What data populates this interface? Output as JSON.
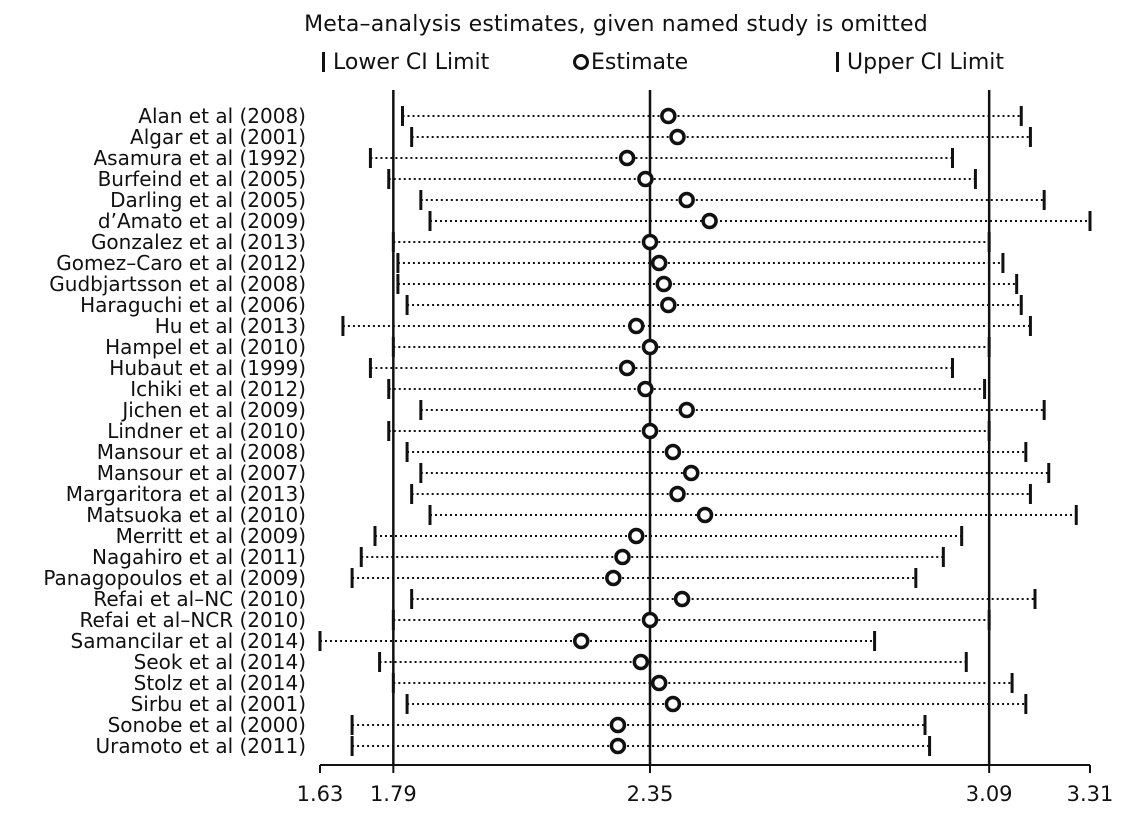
{
  "chart_data": {
    "type": "forest",
    "title": "Meta–analysis estimates, given named study is omitted",
    "legend": {
      "lower": "Lower CI Limit",
      "estimate": "Estimate",
      "upper": "Upper CI Limit",
      "placement": "top"
    },
    "xlim": [
      1.63,
      3.31
    ],
    "xticks": [
      {
        "value": 1.63,
        "label": "1.63"
      },
      {
        "value": 1.79,
        "label": "1.79"
      },
      {
        "value": 2.35,
        "label": "2.35"
      },
      {
        "value": 3.09,
        "label": "3.09"
      },
      {
        "value": 3.31,
        "label": "3.31"
      }
    ],
    "reference_lines": [
      1.79,
      2.35,
      3.09
    ],
    "studies": [
      {
        "name": "Alan et al  (2008)",
        "lower": 1.81,
        "estimate": 2.39,
        "upper": 3.16
      },
      {
        "name": "Algar et al  (2001)",
        "lower": 1.83,
        "estimate": 2.41,
        "upper": 3.18
      },
      {
        "name": "Asamura et al (1992)",
        "lower": 1.74,
        "estimate": 2.3,
        "upper": 3.01
      },
      {
        "name": "Burfeind et al (2005)",
        "lower": 1.78,
        "estimate": 2.34,
        "upper": 3.06
      },
      {
        "name": "Darling et al  (2005)",
        "lower": 1.85,
        "estimate": 2.43,
        "upper": 3.21
      },
      {
        "name": "d’Amato et al  (2009)",
        "lower": 1.87,
        "estimate": 2.48,
        "upper": 3.31
      },
      {
        "name": "Gonzalez et al (2013)",
        "lower": 1.79,
        "estimate": 2.35,
        "upper": 3.09
      },
      {
        "name": "Gomez–Caro et al (2012)",
        "lower": 1.8,
        "estimate": 2.37,
        "upper": 3.12
      },
      {
        "name": "Gudbjartsson et al (2008)",
        "lower": 1.8,
        "estimate": 2.38,
        "upper": 3.15
      },
      {
        "name": "Haraguchi et al  (2006)",
        "lower": 1.82,
        "estimate": 2.39,
        "upper": 3.16
      },
      {
        "name": "Hu et al  (2013)",
        "lower": 1.68,
        "estimate": 2.32,
        "upper": 3.18
      },
      {
        "name": "Hampel et al (2010)",
        "lower": 1.79,
        "estimate": 2.35,
        "upper": 3.09
      },
      {
        "name": "Hubaut et al  (1999)",
        "lower": 1.74,
        "estimate": 2.3,
        "upper": 3.01
      },
      {
        "name": "Ichiki et al  (2012)",
        "lower": 1.78,
        "estimate": 2.34,
        "upper": 3.08
      },
      {
        "name": "Jichen et al (2009)",
        "lower": 1.85,
        "estimate": 2.43,
        "upper": 3.21
      },
      {
        "name": "Lindner et al  (2010)",
        "lower": 1.78,
        "estimate": 2.35,
        "upper": 3.09
      },
      {
        "name": "Mansour et al (2008)",
        "lower": 1.82,
        "estimate": 2.4,
        "upper": 3.17
      },
      {
        "name": "Mansour et al  (2007)",
        "lower": 1.85,
        "estimate": 2.44,
        "upper": 3.22
      },
      {
        "name": "Margaritora et al  (2013)",
        "lower": 1.83,
        "estimate": 2.41,
        "upper": 3.18
      },
      {
        "name": "Matsuoka et al  (2010)",
        "lower": 1.87,
        "estimate": 2.47,
        "upper": 3.28
      },
      {
        "name": "Merritt et al (2009)",
        "lower": 1.75,
        "estimate": 2.32,
        "upper": 3.03
      },
      {
        "name": "Nagahiro et al (2011)",
        "lower": 1.72,
        "estimate": 2.29,
        "upper": 2.99
      },
      {
        "name": "Panagopoulos et al  (2009)",
        "lower": 1.7,
        "estimate": 2.27,
        "upper": 2.93
      },
      {
        "name": "Refai et al–NC (2010)",
        "lower": 1.83,
        "estimate": 2.42,
        "upper": 3.19
      },
      {
        "name": "Refai et al–NCR (2010)",
        "lower": 1.79,
        "estimate": 2.35,
        "upper": 3.09
      },
      {
        "name": "Samancilar et al (2014)",
        "lower": 1.63,
        "estimate": 2.2,
        "upper": 2.84
      },
      {
        "name": "Seok et al (2014)",
        "lower": 1.76,
        "estimate": 2.33,
        "upper": 3.04
      },
      {
        "name": "Stolz et al (2014)",
        "lower": 1.79,
        "estimate": 2.37,
        "upper": 3.14
      },
      {
        "name": "Sirbu et al (2001)",
        "lower": 1.82,
        "estimate": 2.4,
        "upper": 3.17
      },
      {
        "name": "Sonobe et al (2000)",
        "lower": 1.7,
        "estimate": 2.28,
        "upper": 2.95
      },
      {
        "name": "Uramoto et al (2011)",
        "lower": 1.7,
        "estimate": 2.28,
        "upper": 2.96
      }
    ]
  }
}
